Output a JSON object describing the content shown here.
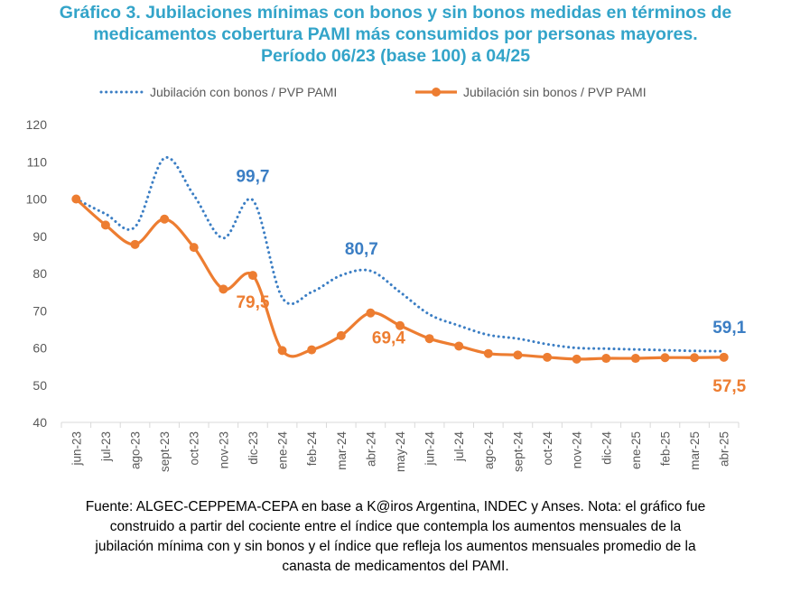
{
  "title_lines": [
    "Gráfico 3. Jubilaciones mínimas con bonos y sin bonos medidas en términos de",
    "medicamentos cobertura PAMI más consumidos por personas mayores.",
    "Período 06/23 (base 100) a 04/25"
  ],
  "source_lines": [
    "Fuente: ALGEC-CEPPEMA-CEPA en base a K@iros Argentina, INDEC y Anses. Nota: el gráfico fue",
    "construido a partir del cociente entre el índice que contempla los aumentos mensuales de la",
    "jubilación mínima con y sin bonos y el índice que refleja los aumentos mensuales promedio de la",
    "canasta de medicamentos del PAMI."
  ],
  "colors": {
    "title": "#33A4C9",
    "con_bonos": "#3B7EC4",
    "sin_bonos": "#ED7D31",
    "axis": "#D9D9D9",
    "tick_text": "#595959"
  },
  "chart_data": {
    "type": "line",
    "categories": [
      "jun-23",
      "jul-23",
      "ago-23",
      "sept-23",
      "oct-23",
      "nov-23",
      "dic-23",
      "ene-24",
      "feb-24",
      "mar-24",
      "abr-24",
      "may-24",
      "jun-24",
      "jul-24",
      "ago-24",
      "sept-24",
      "oct-24",
      "nov-24",
      "dic-24",
      "ene-25",
      "feb-25",
      "mar-25",
      "abr-25"
    ],
    "ylim": [
      40,
      120
    ],
    "yticks": [
      40,
      50,
      60,
      70,
      80,
      90,
      100,
      110,
      120
    ],
    "grid": false,
    "legend_position": "top",
    "series": [
      {
        "name": "Jubilación con bonos / PVP PAMI",
        "style": "dotted",
        "markers": false,
        "values": [
          100,
          96,
          92.5,
          111,
          101,
          89.5,
          99.7,
          73.5,
          75,
          79.5,
          80.7,
          75,
          69,
          66,
          63.5,
          62.5,
          61,
          60,
          59.8,
          59.6,
          59.4,
          59.2,
          59.1
        ]
      },
      {
        "name": "Jubilación sin bonos / PVP PAMI",
        "style": "solid",
        "markers": true,
        "values": [
          100,
          93,
          87.8,
          94.6,
          87,
          75.8,
          79.5,
          59.3,
          59.5,
          63.3,
          69.4,
          66,
          62.5,
          60.5,
          58.5,
          58.1,
          57.5,
          57,
          57.2,
          57.2,
          57.4,
          57.4,
          57.5
        ]
      }
    ],
    "annotations": [
      {
        "series": 0,
        "index": 6,
        "text": "99,7"
      },
      {
        "series": 0,
        "index": 10,
        "text": "80,7"
      },
      {
        "series": 0,
        "index": 22,
        "text": "59,1"
      },
      {
        "series": 1,
        "index": 6,
        "text": "79,5"
      },
      {
        "series": 1,
        "index": 10,
        "text": "69,4"
      },
      {
        "series": 1,
        "index": 22,
        "text": "57,5"
      }
    ]
  }
}
